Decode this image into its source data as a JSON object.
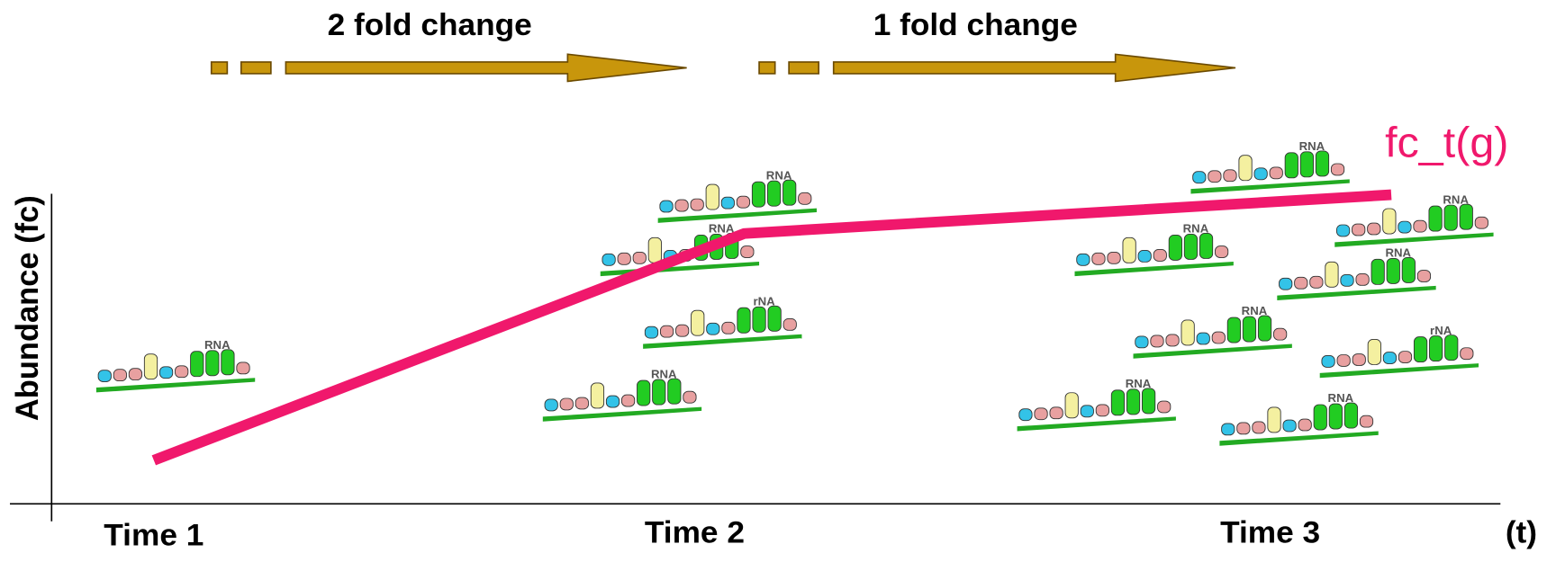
{
  "arrows": [
    {
      "label": "2 fold change"
    },
    {
      "label": "1 fold change"
    }
  ],
  "y_axis_label": "Abundance (fc)",
  "x_axis_label": "(t)",
  "time_labels": [
    "Time 1",
    "Time 2",
    "Time 3"
  ],
  "curve_label": "fc_t(g)",
  "molecules": [
    {
      "label": "RNA"
    },
    {
      "label": "RNA"
    },
    {
      "label": "RNA"
    },
    {
      "label": "rNA"
    },
    {
      "label": "RNA"
    },
    {
      "label": "RNA"
    },
    {
      "label": "RNA"
    },
    {
      "label": "RNA"
    },
    {
      "label": "RNA"
    },
    {
      "label": "RNA"
    },
    {
      "label": "rNA"
    },
    {
      "label": "RNA"
    },
    {
      "label": "RNA"
    }
  ]
}
